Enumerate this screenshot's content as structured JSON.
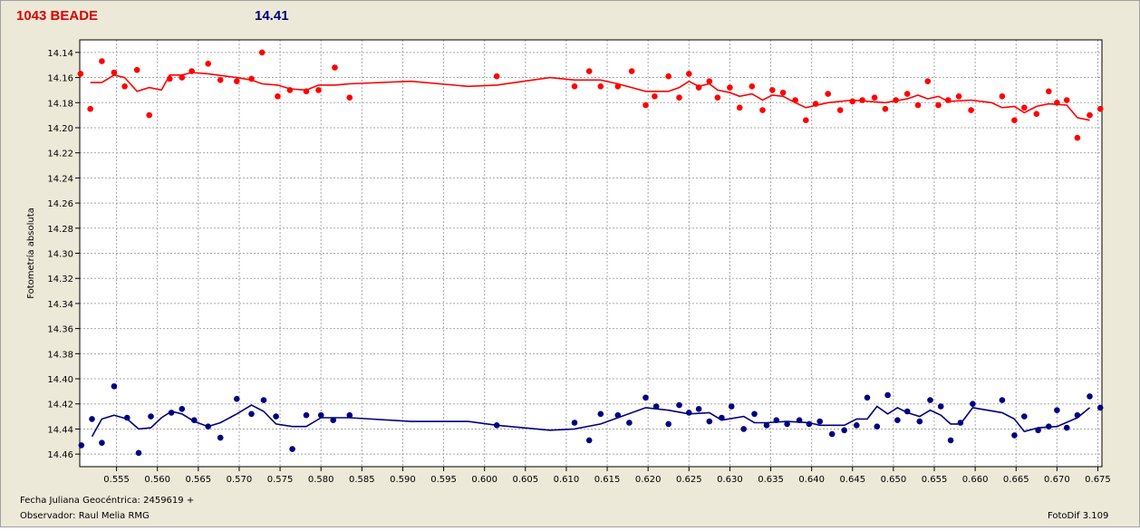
{
  "header": {
    "star_label": "1043 BEADE",
    "magnitude": "14.41"
  },
  "footer": {
    "date_label": "Fecha Juliana Geocéntrica: 2459619 +",
    "observer_label": "Observador: Raul Melia RMG",
    "software_label": "FotoDif 3.109"
  },
  "chart_data": {
    "type": "scatter",
    "ylabel": "Fotometría absoluta",
    "xlabel": "",
    "title": "",
    "xlim": [
      0.5505,
      0.6755
    ],
    "ylim": [
      14.13,
      14.47
    ],
    "y_inverted": true,
    "grid": true,
    "x_ticks": [
      "0.555",
      "0.560",
      "0.565",
      "0.570",
      "0.575",
      "0.580",
      "0.585",
      "0.590",
      "0.595",
      "0.600",
      "0.605",
      "0.610",
      "0.615",
      "0.620",
      "0.625",
      "0.630",
      "0.635",
      "0.640",
      "0.645",
      "0.650",
      "0.655",
      "0.660",
      "0.665",
      "0.670",
      "0.675"
    ],
    "y_ticks": [
      "14.14",
      "14.16",
      "14.18",
      "14.20",
      "14.22",
      "14.24",
      "14.26",
      "14.28",
      "14.30",
      "14.32",
      "14.34",
      "14.36",
      "14.38",
      "14.40",
      "14.42",
      "14.44",
      "14.46"
    ],
    "series": [
      {
        "color": "#ff0000",
        "points": [
          [
            0.5506,
            14.157
          ],
          [
            0.5518,
            14.185
          ],
          [
            0.5532,
            14.147
          ],
          [
            0.5547,
            14.156
          ],
          [
            0.556,
            14.167
          ],
          [
            0.5575,
            14.154
          ],
          [
            0.559,
            14.19
          ],
          [
            0.5615,
            14.161
          ],
          [
            0.563,
            14.16
          ],
          [
            0.5642,
            14.155
          ],
          [
            0.5662,
            14.149
          ],
          [
            0.5677,
            14.162
          ],
          [
            0.5697,
            14.163
          ],
          [
            0.5715,
            14.161
          ],
          [
            0.5728,
            14.14
          ],
          [
            0.5747,
            14.175
          ],
          [
            0.5762,
            14.17
          ],
          [
            0.5782,
            14.171
          ],
          [
            0.5797,
            14.17
          ],
          [
            0.5817,
            14.152
          ],
          [
            0.5835,
            14.176
          ],
          [
            0.6015,
            14.159
          ],
          [
            0.611,
            14.167
          ],
          [
            0.6128,
            14.155
          ],
          [
            0.6142,
            14.167
          ],
          [
            0.6163,
            14.167
          ],
          [
            0.618,
            14.155
          ],
          [
            0.6197,
            14.182
          ],
          [
            0.6208,
            14.175
          ],
          [
            0.6225,
            14.159
          ],
          [
            0.6238,
            14.176
          ],
          [
            0.625,
            14.157
          ],
          [
            0.6262,
            14.168
          ],
          [
            0.6275,
            14.163
          ],
          [
            0.6285,
            14.176
          ],
          [
            0.63,
            14.168
          ],
          [
            0.6312,
            14.184
          ],
          [
            0.6327,
            14.167
          ],
          [
            0.634,
            14.186
          ],
          [
            0.6352,
            14.17
          ],
          [
            0.6365,
            14.172
          ],
          [
            0.638,
            14.178
          ],
          [
            0.6393,
            14.194
          ],
          [
            0.6405,
            14.181
          ],
          [
            0.642,
            14.173
          ],
          [
            0.6435,
            14.186
          ],
          [
            0.645,
            14.179
          ],
          [
            0.6462,
            14.178
          ],
          [
            0.6477,
            14.176
          ],
          [
            0.649,
            14.185
          ],
          [
            0.6503,
            14.178
          ],
          [
            0.6517,
            14.173
          ],
          [
            0.653,
            14.182
          ],
          [
            0.6542,
            14.163
          ],
          [
            0.6555,
            14.182
          ],
          [
            0.6567,
            14.178
          ],
          [
            0.658,
            14.175
          ],
          [
            0.6595,
            14.186
          ],
          [
            0.6633,
            14.175
          ],
          [
            0.6648,
            14.194
          ],
          [
            0.666,
            14.184
          ],
          [
            0.6675,
            14.189
          ],
          [
            0.669,
            14.171
          ],
          [
            0.67,
            14.18
          ],
          [
            0.6712,
            14.178
          ],
          [
            0.6725,
            14.208
          ],
          [
            0.674,
            14.19
          ],
          [
            0.6753,
            14.185
          ]
        ],
        "trend": [
          [
            0.5518,
            14.164
          ],
          [
            0.5532,
            14.164
          ],
          [
            0.5547,
            14.158
          ],
          [
            0.556,
            14.16
          ],
          [
            0.5575,
            14.171
          ],
          [
            0.559,
            14.168
          ],
          [
            0.5605,
            14.17
          ],
          [
            0.5615,
            14.158
          ],
          [
            0.563,
            14.158
          ],
          [
            0.5642,
            14.156
          ],
          [
            0.5662,
            14.157
          ],
          [
            0.5697,
            14.16
          ],
          [
            0.5715,
            14.162
          ],
          [
            0.5728,
            14.165
          ],
          [
            0.5747,
            14.166
          ],
          [
            0.5762,
            14.169
          ],
          [
            0.5782,
            14.17
          ],
          [
            0.5797,
            14.166
          ],
          [
            0.5817,
            14.166
          ],
          [
            0.5835,
            14.165
          ],
          [
            0.591,
            14.163
          ],
          [
            0.598,
            14.167
          ],
          [
            0.6015,
            14.166
          ],
          [
            0.608,
            14.16
          ],
          [
            0.611,
            14.162
          ],
          [
            0.6142,
            14.162
          ],
          [
            0.6163,
            14.165
          ],
          [
            0.6197,
            14.171
          ],
          [
            0.6225,
            14.171
          ],
          [
            0.6238,
            14.168
          ],
          [
            0.625,
            14.163
          ],
          [
            0.6262,
            14.167
          ],
          [
            0.6275,
            14.165
          ],
          [
            0.6285,
            14.17
          ],
          [
            0.63,
            14.172
          ],
          [
            0.6312,
            14.175
          ],
          [
            0.6327,
            14.173
          ],
          [
            0.634,
            14.178
          ],
          [
            0.6352,
            14.174
          ],
          [
            0.6365,
            14.175
          ],
          [
            0.638,
            14.18
          ],
          [
            0.6393,
            14.184
          ],
          [
            0.642,
            14.18
          ],
          [
            0.645,
            14.178
          ],
          [
            0.649,
            14.18
          ],
          [
            0.6517,
            14.177
          ],
          [
            0.653,
            14.174
          ],
          [
            0.6542,
            14.177
          ],
          [
            0.6555,
            14.175
          ],
          [
            0.6567,
            14.179
          ],
          [
            0.6595,
            14.178
          ],
          [
            0.662,
            14.18
          ],
          [
            0.6633,
            14.184
          ],
          [
            0.6648,
            14.183
          ],
          [
            0.666,
            14.188
          ],
          [
            0.6675,
            14.183
          ],
          [
            0.669,
            14.181
          ],
          [
            0.6712,
            14.182
          ],
          [
            0.6725,
            14.192
          ],
          [
            0.674,
            14.194
          ]
        ]
      },
      {
        "color": "#000080",
        "points": [
          [
            0.5507,
            14.453
          ],
          [
            0.552,
            14.432
          ],
          [
            0.5532,
            14.451
          ],
          [
            0.5547,
            14.406
          ],
          [
            0.5563,
            14.431
          ],
          [
            0.5577,
            14.459
          ],
          [
            0.5592,
            14.43
          ],
          [
            0.5617,
            14.427
          ],
          [
            0.563,
            14.424
          ],
          [
            0.5645,
            14.433
          ],
          [
            0.5662,
            14.438
          ],
          [
            0.5677,
            14.447
          ],
          [
            0.5697,
            14.416
          ],
          [
            0.5715,
            14.428
          ],
          [
            0.573,
            14.417
          ],
          [
            0.5745,
            14.43
          ],
          [
            0.5765,
            14.456
          ],
          [
            0.5782,
            14.429
          ],
          [
            0.58,
            14.429
          ],
          [
            0.5815,
            14.433
          ],
          [
            0.5835,
            14.429
          ],
          [
            0.6015,
            14.437
          ],
          [
            0.611,
            14.435
          ],
          [
            0.6128,
            14.449
          ],
          [
            0.6142,
            14.428
          ],
          [
            0.6163,
            14.429
          ],
          [
            0.6177,
            14.435
          ],
          [
            0.6197,
            14.415
          ],
          [
            0.621,
            14.422
          ],
          [
            0.6225,
            14.436
          ],
          [
            0.6238,
            14.421
          ],
          [
            0.625,
            14.427
          ],
          [
            0.6262,
            14.424
          ],
          [
            0.6275,
            14.434
          ],
          [
            0.629,
            14.431
          ],
          [
            0.6302,
            14.422
          ],
          [
            0.6317,
            14.44
          ],
          [
            0.633,
            14.428
          ],
          [
            0.6345,
            14.437
          ],
          [
            0.6357,
            14.433
          ],
          [
            0.637,
            14.436
          ],
          [
            0.6385,
            14.433
          ],
          [
            0.6397,
            14.436
          ],
          [
            0.641,
            14.434
          ],
          [
            0.6425,
            14.444
          ],
          [
            0.644,
            14.441
          ],
          [
            0.6455,
            14.437
          ],
          [
            0.6468,
            14.415
          ],
          [
            0.648,
            14.438
          ],
          [
            0.6493,
            14.413
          ],
          [
            0.6505,
            14.433
          ],
          [
            0.6517,
            14.426
          ],
          [
            0.6532,
            14.434
          ],
          [
            0.6545,
            14.417
          ],
          [
            0.6558,
            14.422
          ],
          [
            0.657,
            14.449
          ],
          [
            0.6582,
            14.435
          ],
          [
            0.6597,
            14.42
          ],
          [
            0.6633,
            14.417
          ],
          [
            0.6648,
            14.445
          ],
          [
            0.666,
            14.43
          ],
          [
            0.6677,
            14.441
          ],
          [
            0.669,
            14.438
          ],
          [
            0.67,
            14.425
          ],
          [
            0.6712,
            14.439
          ],
          [
            0.6725,
            14.429
          ],
          [
            0.674,
            14.414
          ],
          [
            0.6753,
            14.423
          ]
        ],
        "trend": [
          [
            0.552,
            14.446
          ],
          [
            0.5532,
            14.432
          ],
          [
            0.5547,
            14.429
          ],
          [
            0.5563,
            14.432
          ],
          [
            0.5577,
            14.44
          ],
          [
            0.5592,
            14.439
          ],
          [
            0.5605,
            14.431
          ],
          [
            0.5617,
            14.426
          ],
          [
            0.563,
            14.428
          ],
          [
            0.5645,
            14.434
          ],
          [
            0.5662,
            14.438
          ],
          [
            0.5677,
            14.435
          ],
          [
            0.5697,
            14.428
          ],
          [
            0.5715,
            14.421
          ],
          [
            0.573,
            14.426
          ],
          [
            0.5745,
            14.436
          ],
          [
            0.5765,
            14.438
          ],
          [
            0.5782,
            14.438
          ],
          [
            0.58,
            14.431
          ],
          [
            0.5835,
            14.431
          ],
          [
            0.591,
            14.434
          ],
          [
            0.598,
            14.434
          ],
          [
            0.6015,
            14.437
          ],
          [
            0.608,
            14.441
          ],
          [
            0.611,
            14.44
          ],
          [
            0.6142,
            14.436
          ],
          [
            0.6163,
            14.431
          ],
          [
            0.6197,
            14.423
          ],
          [
            0.6225,
            14.425
          ],
          [
            0.625,
            14.428
          ],
          [
            0.6275,
            14.427
          ],
          [
            0.629,
            14.433
          ],
          [
            0.6317,
            14.43
          ],
          [
            0.633,
            14.435
          ],
          [
            0.6345,
            14.435
          ],
          [
            0.637,
            14.434
          ],
          [
            0.6397,
            14.435
          ],
          [
            0.641,
            14.437
          ],
          [
            0.644,
            14.437
          ],
          [
            0.6455,
            14.432
          ],
          [
            0.6468,
            14.432
          ],
          [
            0.648,
            14.422
          ],
          [
            0.6493,
            14.428
          ],
          [
            0.6505,
            14.423
          ],
          [
            0.6517,
            14.427
          ],
          [
            0.6532,
            14.43
          ],
          [
            0.6545,
            14.425
          ],
          [
            0.6558,
            14.429
          ],
          [
            0.657,
            14.436
          ],
          [
            0.6582,
            14.436
          ],
          [
            0.6597,
            14.423
          ],
          [
            0.6633,
            14.427
          ],
          [
            0.6648,
            14.432
          ],
          [
            0.666,
            14.442
          ],
          [
            0.6677,
            14.439
          ],
          [
            0.67,
            14.438
          ],
          [
            0.6725,
            14.431
          ],
          [
            0.674,
            14.423
          ]
        ]
      }
    ]
  }
}
